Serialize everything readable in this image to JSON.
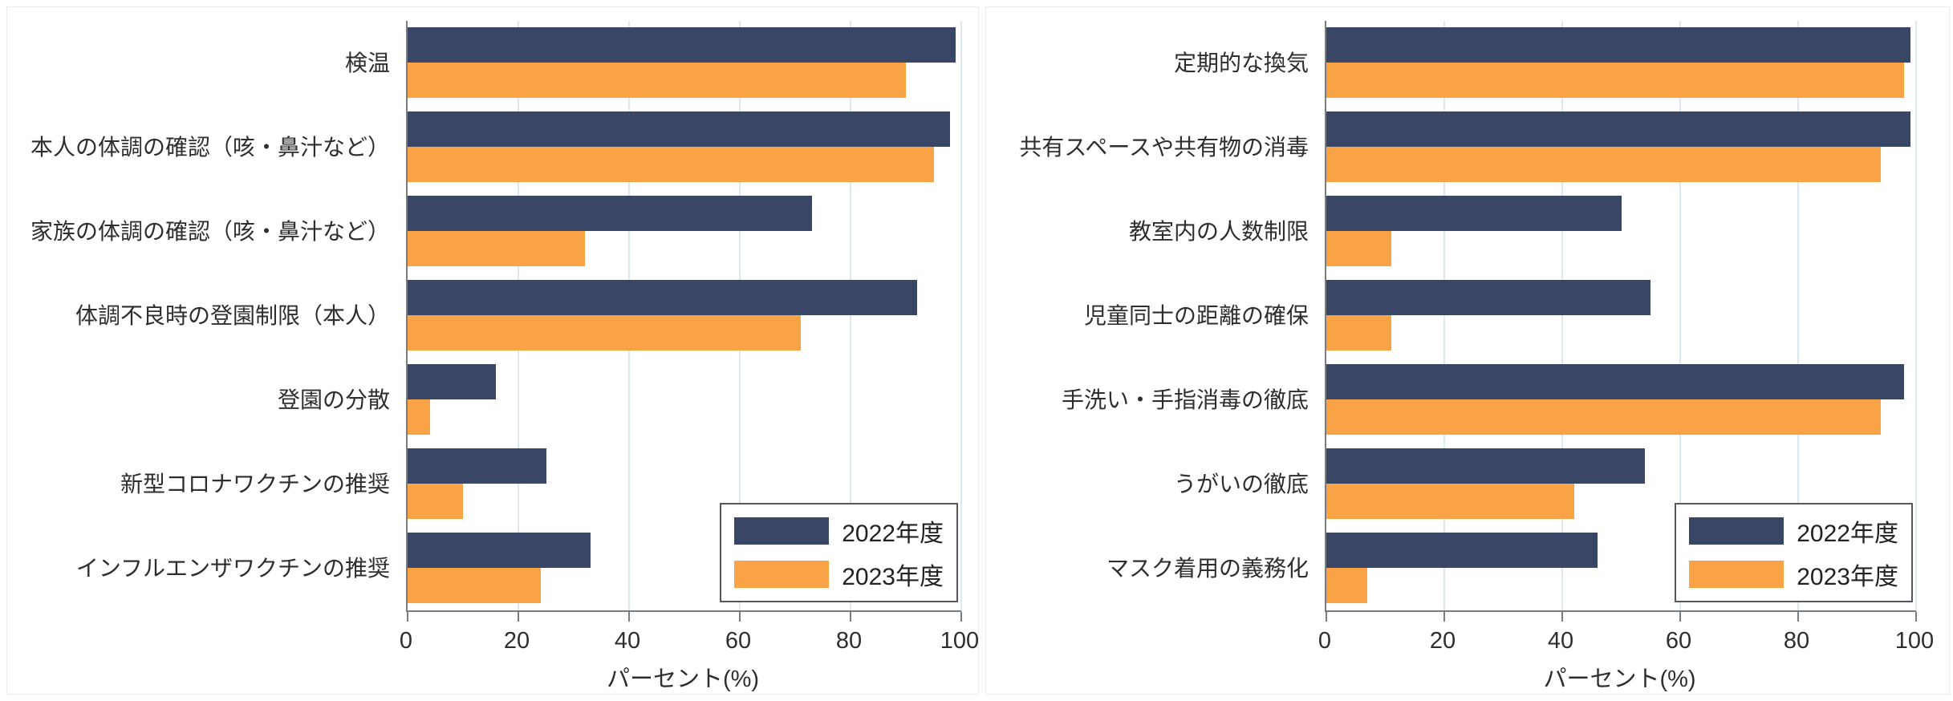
{
  "legend": {
    "series1": "2022年度",
    "series2": "2023年度"
  },
  "colors": {
    "series1": "#3a4665",
    "series2": "#faa246",
    "grid": "#dce7f0",
    "axis": "#7c7c7c"
  },
  "chart_data": [
    {
      "type": "bar",
      "orientation": "horizontal",
      "categories": [
        "検温",
        "本人の体調の確認（咳・鼻汁など）",
        "家族の体調の確認（咳・鼻汁など）",
        "体調不良時の登園制限（本人）",
        "登園の分散",
        "新型コロナワクチンの推奨",
        "インフルエンザワクチンの推奨"
      ],
      "series": [
        {
          "name": "2022年度",
          "values": [
            99,
            98,
            73,
            92,
            16,
            25,
            33
          ]
        },
        {
          "name": "2023年度",
          "values": [
            90,
            95,
            32,
            71,
            4,
            10,
            24
          ]
        }
      ],
      "xlabel": "パーセント(%)",
      "xlim": [
        0,
        100
      ],
      "xticks": [
        0,
        20,
        40,
        60,
        80,
        100
      ],
      "grid": true,
      "legend_position": "bottom-right"
    },
    {
      "type": "bar",
      "orientation": "horizontal",
      "categories": [
        "定期的な換気",
        "共有スペースや共有物の消毒",
        "教室内の人数制限",
        "児童同士の距離の確保",
        "手洗い・手指消毒の徹底",
        "うがいの徹底",
        "マスク着用の義務化"
      ],
      "series": [
        {
          "name": "2022年度",
          "values": [
            99,
            99,
            50,
            55,
            98,
            54,
            46
          ]
        },
        {
          "name": "2023年度",
          "values": [
            98,
            94,
            11,
            11,
            94,
            42,
            7
          ]
        }
      ],
      "xlabel": "パーセント(%)",
      "xlim": [
        0,
        100
      ],
      "xticks": [
        0,
        20,
        40,
        60,
        80,
        100
      ],
      "grid": true,
      "legend_position": "bottom-right"
    }
  ]
}
